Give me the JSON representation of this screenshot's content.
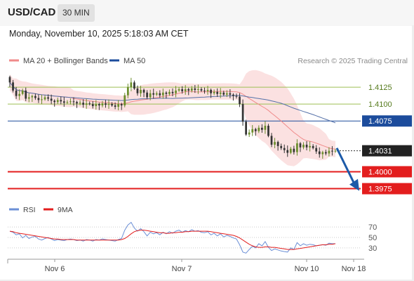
{
  "header": {
    "symbol": "USD/CAD",
    "interval": "30 MIN",
    "datetime": "Monday, November 10, 2025 5:18:03 AM CET"
  },
  "legend": {
    "ma20_bb": "MA 20 + Bollinger Bands",
    "ma50": "MA 50",
    "credit": "Research © 2025 Trading Central"
  },
  "rsi_legend": {
    "rsi": "RSI",
    "ma9": "9MA"
  },
  "colors": {
    "resistance": "#9dbf53",
    "pivot": "#1c4c9c",
    "support": "#e31e1e",
    "bullish_candle": "#6a8d2b",
    "bearish_candle": "#333333",
    "bollinger_band": "#fadcdc",
    "ma20": "#f08a8a",
    "ma50": "#5571a8",
    "rsi": "#6b8fd6",
    "rsi_ma9": "#e31e1e",
    "arrow": "#1c5aa8"
  },
  "chart_data": {
    "type": "candlestick",
    "y_range": [
      1.396,
      1.415
    ],
    "x_labels": [
      "Nov 6",
      "Nov 7",
      "Nov 10",
      "Nov 18"
    ],
    "levels": [
      {
        "value": "1.4125",
        "kind": "resistance"
      },
      {
        "value": "1.4100",
        "kind": "resistance"
      },
      {
        "value": "1.4075",
        "kind": "pivot"
      },
      {
        "value": "1.4031",
        "kind": "last"
      },
      {
        "value": "1.4000",
        "kind": "support"
      },
      {
        "value": "1.3975",
        "kind": "support"
      }
    ],
    "projection": {
      "from": 1.4035,
      "to": 1.3978
    },
    "closes": [
      1.4132,
      1.412,
      1.4112,
      1.4115,
      1.412,
      1.4108,
      1.411,
      1.4112,
      1.4109,
      1.4106,
      1.4107,
      1.411,
      1.4108,
      1.4105,
      1.4103,
      1.4106,
      1.4104,
      1.4102,
      1.4103,
      1.4104,
      1.4103,
      1.4101,
      1.4102,
      1.4099,
      1.4101,
      1.41,
      1.4097,
      1.41,
      1.4098,
      1.4101,
      1.4099,
      1.41,
      1.4098,
      1.4096,
      1.41,
      1.4098,
      1.4113,
      1.4125,
      1.4132,
      1.4123,
      1.4116,
      1.4121,
      1.4117,
      1.411,
      1.4116,
      1.4114,
      1.4116,
      1.4113,
      1.4117,
      1.4115,
      1.4118,
      1.4116,
      1.412,
      1.4122,
      1.4119,
      1.4122,
      1.412,
      1.4123,
      1.4121,
      1.4122,
      1.412,
      1.4119,
      1.4121,
      1.4116,
      1.4118,
      1.4115,
      1.4117,
      1.4114,
      1.4116,
      1.4114,
      1.4112,
      1.4111,
      1.41,
      1.4074,
      1.4055,
      1.4058,
      1.4063,
      1.406,
      1.4065,
      1.4062,
      1.4068,
      1.4053,
      1.404,
      1.4044,
      1.4038,
      1.4035,
      1.4032,
      1.4028,
      1.4034,
      1.4029,
      1.4042,
      1.4036,
      1.404,
      1.4036,
      1.4038,
      1.4035,
      1.403,
      1.4026,
      1.4029,
      1.4027,
      1.4031,
      1.403,
      1.4031
    ],
    "rsi": {
      "ticks": [
        "70",
        "50",
        "30"
      ],
      "range": [
        15,
        85
      ],
      "values": [
        62,
        60,
        55,
        57,
        49,
        54,
        48,
        51,
        52,
        47,
        45,
        48,
        50,
        47,
        44,
        46,
        45,
        44,
        46,
        47,
        46,
        44,
        45,
        43,
        46,
        45,
        43,
        46,
        45,
        47,
        46,
        45,
        44,
        43,
        46,
        48,
        64,
        74,
        79,
        68,
        62,
        67,
        61,
        53,
        60,
        57,
        59,
        55,
        60,
        57,
        61,
        58,
        62,
        64,
        60,
        63,
        61,
        65,
        62,
        63,
        60,
        59,
        61,
        55,
        58,
        53,
        57,
        51,
        54,
        52,
        49,
        47,
        36,
        22,
        20,
        27,
        33,
        30,
        38,
        34,
        42,
        31,
        25,
        28,
        26,
        24,
        23,
        22,
        30,
        27,
        40,
        34,
        38,
        35,
        37,
        36,
        34,
        35,
        36,
        35,
        39,
        38,
        38
      ],
      "ma9": [
        62,
        61,
        59,
        58,
        57,
        56,
        55,
        54,
        53,
        52,
        51,
        50,
        49,
        48,
        47,
        47,
        46,
        46,
        46,
        46,
        46,
        45,
        45,
        45,
        45,
        45,
        45,
        45,
        45,
        45,
        45,
        45,
        45,
        45,
        45,
        46,
        48,
        52,
        57,
        61,
        63,
        64,
        64,
        63,
        62,
        61,
        60,
        59,
        59,
        58,
        58,
        59,
        59,
        60,
        60,
        61,
        61,
        62,
        62,
        62,
        62,
        62,
        62,
        61,
        60,
        59,
        58,
        57,
        56,
        55,
        54,
        52,
        49,
        45,
        41,
        37,
        34,
        32,
        31,
        31,
        32,
        32,
        31,
        31,
        30,
        29,
        28,
        27,
        27,
        27,
        28,
        29,
        30,
        31,
        32,
        33,
        34,
        35,
        36,
        36,
        37,
        37,
        38
      ]
    }
  }
}
